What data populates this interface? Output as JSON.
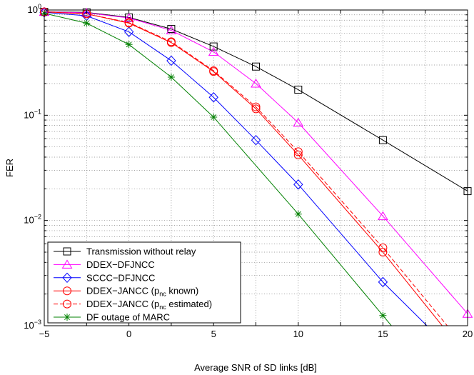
{
  "chart_data": {
    "type": "line",
    "xlabel": "Average SNR of SD links [dB]",
    "ylabel": "FER",
    "xlim": [
      -5,
      20
    ],
    "ylim": [
      0.001,
      1
    ],
    "yscale": "log",
    "grid": true,
    "legend_position": "bottom-left",
    "x_ticks": [
      {
        "value": -5,
        "label": "−5"
      },
      {
        "value": 0,
        "label": "0"
      },
      {
        "value": 5,
        "label": "5"
      },
      {
        "value": 10,
        "label": "10"
      },
      {
        "value": 15,
        "label": "15"
      },
      {
        "value": 20,
        "label": "20"
      }
    ],
    "y_ticks": [
      {
        "value": 1,
        "base": "10",
        "exp": "0"
      },
      {
        "value": 0.1,
        "base": "10",
        "exp": "−1"
      },
      {
        "value": 0.01,
        "base": "10",
        "exp": "−2"
      },
      {
        "value": 0.001,
        "base": "10",
        "exp": "−3"
      }
    ],
    "series": [
      {
        "name": "Transmission without relay",
        "color": "#000000",
        "marker": "square",
        "dash": "solid",
        "x": [
          -5,
          -2.5,
          0,
          2.5,
          5,
          7.5,
          10,
          15,
          20
        ],
        "y": [
          0.96,
          0.95,
          0.85,
          0.66,
          0.45,
          0.29,
          0.175,
          0.058,
          0.019
        ]
      },
      {
        "name": "DDEX−DFJNCC",
        "color": "#ff00ff",
        "marker": "triangle",
        "dash": "solid",
        "x": [
          -5,
          -2.5,
          0,
          2.5,
          5,
          7.5,
          10,
          15,
          20
        ],
        "y": [
          0.96,
          0.94,
          0.84,
          0.64,
          0.4,
          0.2,
          0.085,
          0.011,
          0.0013
        ]
      },
      {
        "name": "SCCC−DFJNCC",
        "color": "#0000ff",
        "marker": "diamond",
        "dash": "solid",
        "x": [
          -5,
          -2.5,
          0,
          2.5,
          5,
          7.5,
          10,
          15,
          17.6
        ],
        "y": [
          0.95,
          0.88,
          0.62,
          0.33,
          0.148,
          0.058,
          0.022,
          0.0026,
          0.001
        ]
      },
      {
        "name": "DDEX−JANCC (p_nc known)",
        "legend_base": "DDEX−JANCC (p",
        "legend_sub": "nc",
        "legend_rest": " known)",
        "color": "#ff0000",
        "marker": "circle",
        "dash": "solid",
        "x": [
          -5,
          -2.5,
          0,
          2.5,
          5,
          7.5,
          10,
          15,
          18.5
        ],
        "y": [
          0.96,
          0.92,
          0.75,
          0.49,
          0.26,
          0.115,
          0.042,
          0.005,
          0.001
        ]
      },
      {
        "name": "DDEX−JANCC (p_nc estimated)",
        "legend_base": "DDEX−JANCC (p",
        "legend_sub": "nc",
        "legend_rest": " estimated)",
        "color": "#ff0000",
        "marker": "circle",
        "dash": "dashed",
        "x": [
          -5,
          -2.5,
          0,
          2.5,
          5,
          7.5,
          10,
          15,
          18.8
        ],
        "y": [
          0.96,
          0.92,
          0.76,
          0.5,
          0.265,
          0.12,
          0.045,
          0.0055,
          0.001
        ]
      },
      {
        "name": "DF outage of MARC",
        "color": "#008000",
        "marker": "star",
        "dash": "solid",
        "x": [
          -5,
          -2.5,
          0,
          2.5,
          5,
          10,
          15,
          15.5
        ],
        "y": [
          0.93,
          0.75,
          0.47,
          0.23,
          0.096,
          0.0115,
          0.00125,
          0.001
        ]
      }
    ]
  }
}
